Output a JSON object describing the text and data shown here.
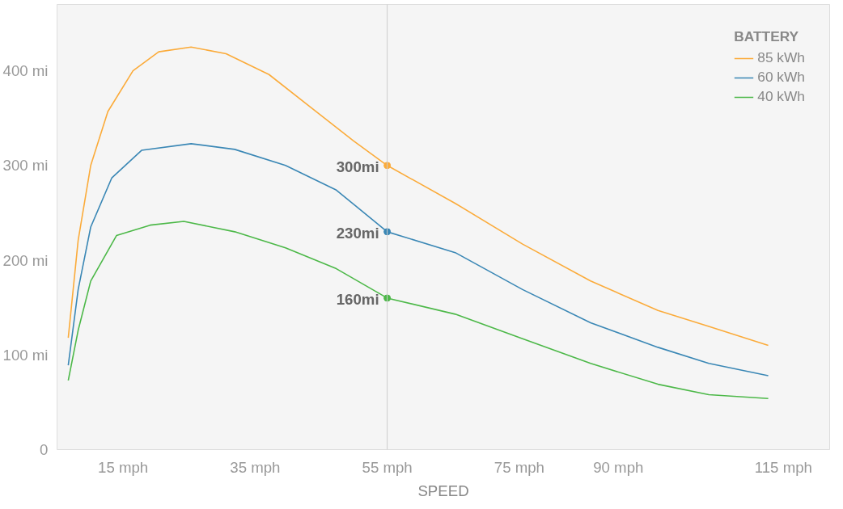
{
  "chart_data": {
    "type": "line",
    "xlabel": "SPEED",
    "legend_title": "BATTERY",
    "legend": "top right",
    "grid": false,
    "marker": "none",
    "line_style": "solid",
    "xlim": [
      5,
      122
    ],
    "ylim": [
      0,
      470
    ],
    "xticks": [
      {
        "value": 15,
        "label": "15 mph"
      },
      {
        "value": 35,
        "label": "35 mph"
      },
      {
        "value": 55,
        "label": "55 mph"
      },
      {
        "value": 75,
        "label": "75 mph"
      },
      {
        "value": 90,
        "label": "90 mph"
      },
      {
        "value": 115,
        "label": "115 mph"
      }
    ],
    "yticks": [
      {
        "value": 0,
        "label": "0"
      },
      {
        "value": 100,
        "label": "100 mi"
      },
      {
        "value": 200,
        "label": "200 mi"
      },
      {
        "value": 300,
        "label": "300 mi"
      },
      {
        "value": 400,
        "label": "400 mi"
      }
    ],
    "ref_lines": [
      {
        "axis": "x",
        "value": 55,
        "label": null,
        "color": "#cccccc"
      }
    ],
    "series": [
      {
        "name": "85 kWh",
        "color": "#fbab3a",
        "x": [
          6.7,
          8.2,
          10.1,
          12.7,
          16.5,
          20.4,
          25.3,
          30.6,
          37.1,
          43.5,
          49.9,
          55,
          65.3,
          75.5,
          85.8,
          96.0,
          103.7,
          112.7
        ],
        "values": [
          118,
          221,
          300,
          357,
          400,
          420,
          425,
          418,
          396,
          361,
          326,
          300,
          260,
          217,
          178,
          147,
          130,
          110
        ],
        "value_labels": [
          null,
          null,
          null,
          null,
          null,
          null,
          null,
          null,
          null,
          null,
          null,
          "300mi",
          null,
          null,
          null,
          null,
          null,
          null
        ]
      },
      {
        "name": "60 kWh",
        "color": "#3a87b5",
        "x": [
          6.7,
          8.2,
          10.1,
          13.3,
          17.8,
          25.3,
          31.9,
          39.6,
          47.3,
          55,
          65.3,
          75.5,
          85.8,
          96.0,
          103.7,
          112.7
        ],
        "values": [
          89,
          169,
          235,
          287,
          316,
          323,
          317,
          300,
          274,
          230,
          208,
          169,
          134,
          108,
          91,
          78
        ],
        "value_labels": [
          null,
          null,
          null,
          null,
          null,
          null,
          null,
          null,
          null,
          "230mi",
          null,
          null,
          null,
          null,
          null,
          null
        ]
      },
      {
        "name": "40 kWh",
        "color": "#4cb848",
        "x": [
          6.7,
          8.2,
          10.1,
          14.0,
          19.1,
          24.2,
          31.9,
          39.6,
          47.3,
          55,
          65.3,
          75.5,
          85.8,
          96.0,
          103.7,
          112.7
        ],
        "values": [
          73,
          126,
          178,
          226,
          237,
          241,
          230,
          213,
          191,
          160,
          143,
          117,
          91,
          69,
          58,
          54
        ],
        "value_labels": [
          null,
          null,
          null,
          null,
          null,
          null,
          null,
          null,
          null,
          "160mi",
          null,
          null,
          null,
          null,
          null,
          null
        ]
      }
    ]
  }
}
